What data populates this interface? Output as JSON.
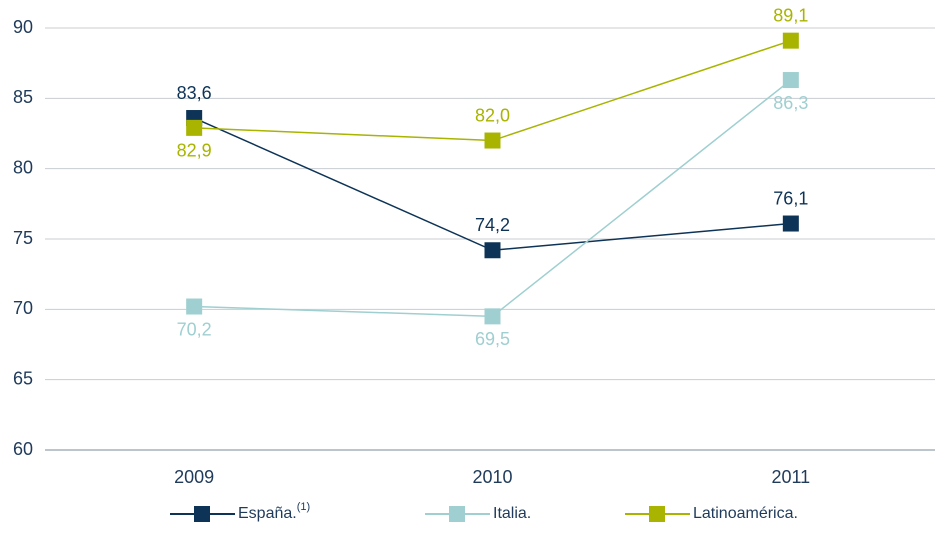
{
  "chart_data": {
    "type": "line",
    "categories": [
      "2009",
      "2010",
      "2011"
    ],
    "series": [
      {
        "name": "España.",
        "footnote_mark": "(1)",
        "color": "#0d3356",
        "values": [
          83.6,
          74.2,
          76.1
        ],
        "value_labels": [
          "83,6",
          "74,2",
          "76,1"
        ]
      },
      {
        "name": "Italia.",
        "color": "#9fcfd0",
        "values": [
          70.2,
          69.5,
          86.3
        ],
        "value_labels": [
          "70,2",
          "69,5",
          "86,3"
        ]
      },
      {
        "name": "Latinoamérica.",
        "color": "#a8b400",
        "values": [
          82.9,
          82.0,
          89.1
        ],
        "value_labels": [
          "82,9",
          "82,0",
          "89,1"
        ]
      }
    ],
    "ylim": [
      60,
      90
    ],
    "yticks": [
      60,
      65,
      70,
      75,
      80,
      85,
      90
    ],
    "grid": true,
    "legend": "bottom"
  }
}
